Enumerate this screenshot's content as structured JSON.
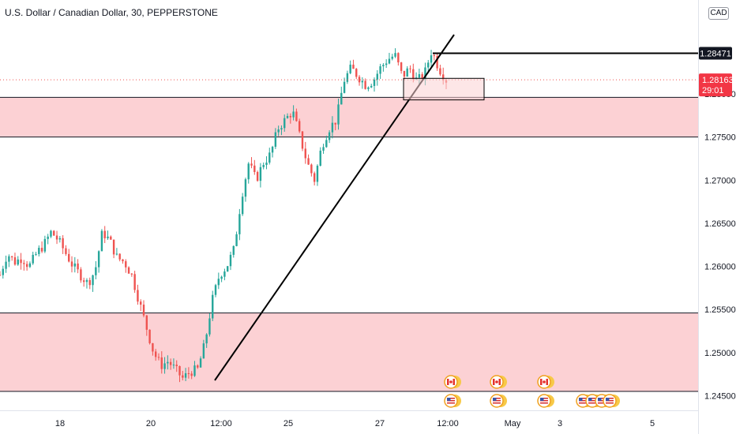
{
  "header": {
    "symbol_title": "U.S. Dollar / Canadian Dollar, 30, PEPPERSTONE",
    "currency": "CAD"
  },
  "chart_data": {
    "type": "candlestick",
    "y_ticks": [
      "1.24500",
      "1.25000",
      "1.25500",
      "1.26000",
      "1.26500",
      "1.27000",
      "1.27500",
      "1.28000"
    ],
    "x_ticks": [
      "18",
      "20",
      "12:00",
      "25",
      "27",
      "12:00",
      "May",
      "3",
      "5"
    ],
    "ylim": [
      1.2442,
      1.2908
    ],
    "level_line_label": "1.28471",
    "level_line_value": 1.28471,
    "current_price": "1.28163",
    "current_price_value": 1.28163,
    "countdown": "29:01",
    "zones": [
      {
        "low": 1.275,
        "high": 1.2796
      },
      {
        "low": 1.2455,
        "high": 1.2546
      }
    ],
    "trendline": {
      "from": [
        "12:00 (Apr 21)",
        1.2463
      ],
      "to": [
        "Apr 28",
        1.2877
      ]
    },
    "rect_box": {
      "low": 1.2793,
      "high": 1.2818
    },
    "price_path": [
      1.259,
      1.2615,
      1.2605,
      1.261,
      1.26,
      1.2615,
      1.2625,
      1.264,
      1.263,
      1.2615,
      1.26,
      1.259,
      1.258,
      1.2595,
      1.264,
      1.263,
      1.261,
      1.2605,
      1.259,
      1.256,
      1.253,
      1.25,
      1.2485,
      1.249,
      1.248,
      1.247,
      1.2478,
      1.248,
      1.251,
      1.256,
      1.259,
      1.26,
      1.262,
      1.268,
      1.272,
      1.27,
      1.272,
      1.273,
      1.276,
      1.277,
      1.278,
      1.275,
      1.272,
      1.27,
      1.274,
      1.276,
      1.277,
      1.2815,
      1.283,
      1.282,
      1.281,
      1.2815,
      1.283,
      1.284,
      1.2845,
      1.282,
      1.283,
      1.2815,
      1.2822,
      1.285,
      1.283,
      1.2816
    ]
  },
  "events": {
    "flags": [
      "canada",
      "canada",
      "canada",
      "usa",
      "usa",
      "usa",
      "usa",
      "usa",
      "usa",
      "usa"
    ]
  },
  "colors": {
    "bull": "#26a69a",
    "bear": "#ef5350",
    "zone_fill": "#fcd1d4",
    "price_label_bg": "#f23645",
    "level_label_bg": "#131722"
  }
}
